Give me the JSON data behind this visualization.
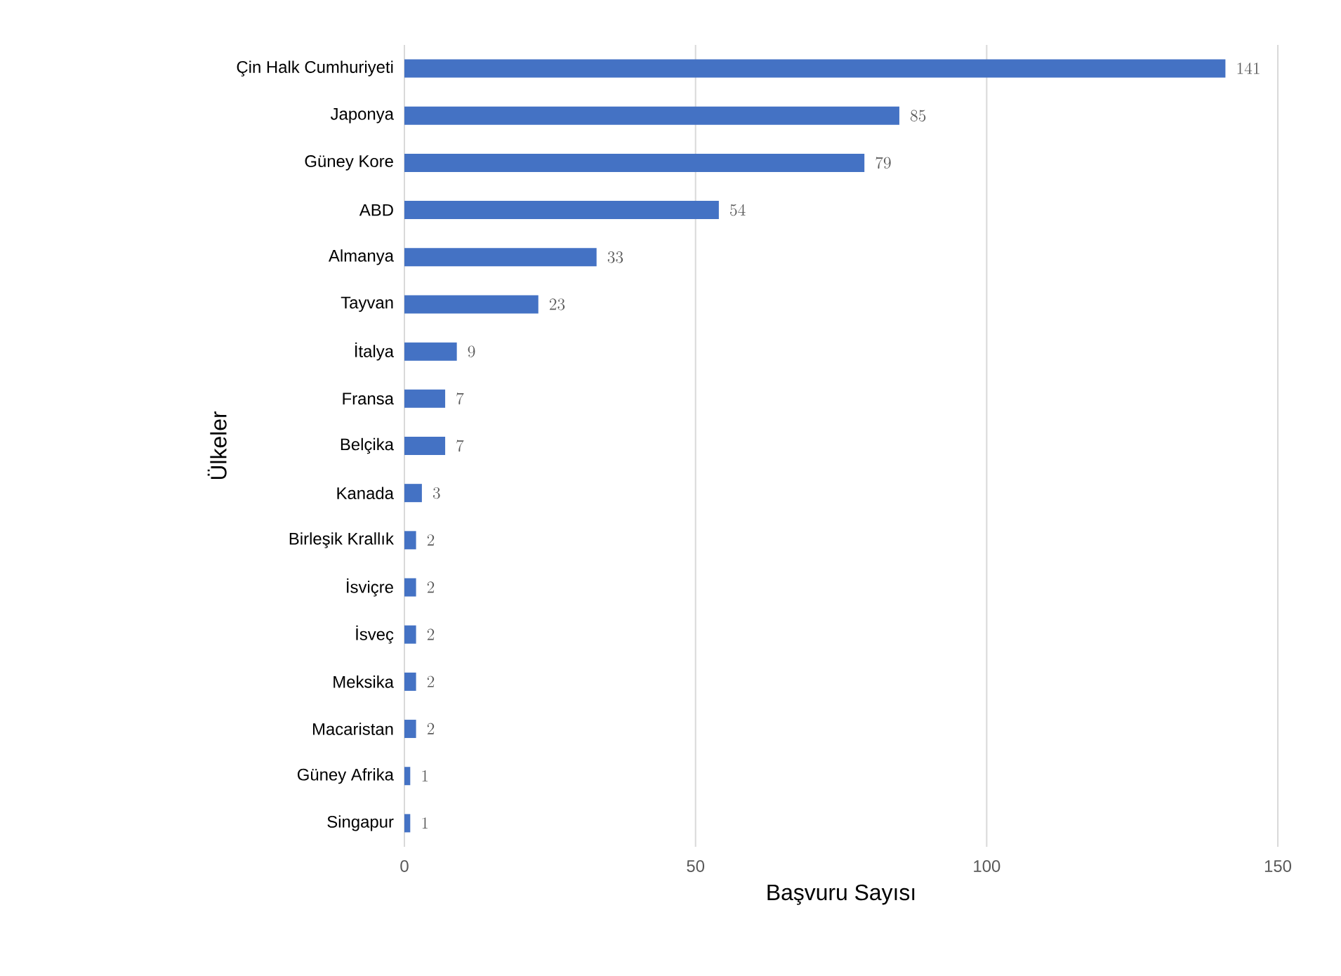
{
  "chart_data": {
    "type": "bar",
    "orientation": "horizontal",
    "xlabel": "Başvuru Sayısı",
    "ylabel": "Ülkeler",
    "categories": [
      "Çin Halk Cumhuriyeti",
      "Japonya",
      "Güney Kore",
      "ABD",
      "Almanya",
      "Tayvan",
      "İtalya",
      "Fransa",
      "Belçika",
      "Kanada",
      "Birleşik Krallık",
      "İsviçre",
      "İsveç",
      "Meksika",
      "Macaristan",
      "Güney Afrika",
      "Singapur"
    ],
    "values": [
      141,
      85,
      79,
      54,
      33,
      23,
      9,
      7,
      7,
      3,
      2,
      2,
      2,
      2,
      2,
      1,
      1
    ],
    "color": "#4472c4",
    "xlim": [
      0,
      150
    ],
    "xticks": [
      0,
      50,
      100,
      150
    ],
    "grid": "x",
    "data_labels": true
  }
}
